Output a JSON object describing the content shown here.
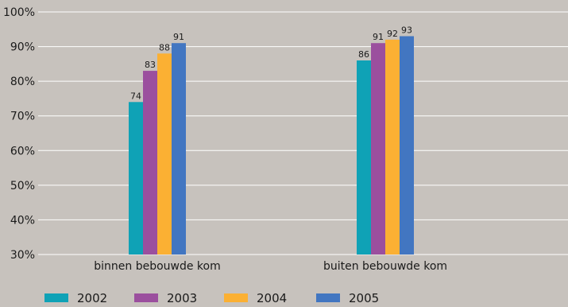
{
  "chart_data": {
    "type": "bar",
    "categories": [
      "binnen bebouwde kom",
      "buiten bebouwde kom"
    ],
    "series": [
      {
        "name": "2002",
        "color": "#0fa2b6",
        "values": [
          74,
          86
        ]
      },
      {
        "name": "2003",
        "color": "#9b4f9e",
        "values": [
          83,
          91
        ]
      },
      {
        "name": "2004",
        "color": "#fbb033",
        "values": [
          88,
          92
        ]
      },
      {
        "name": "2005",
        "color": "#4276c1",
        "values": [
          91,
          93
        ]
      }
    ],
    "ylim": [
      30,
      100
    ],
    "yticks": [
      30,
      40,
      50,
      60,
      70,
      80,
      90,
      100
    ],
    "ytick_labels": [
      "30%",
      "40%",
      "50%",
      "60%",
      "70%",
      "80%",
      "90%",
      "100%"
    ],
    "grid": true,
    "legend_position": "bottom",
    "gridline_color": "#ffffff"
  }
}
